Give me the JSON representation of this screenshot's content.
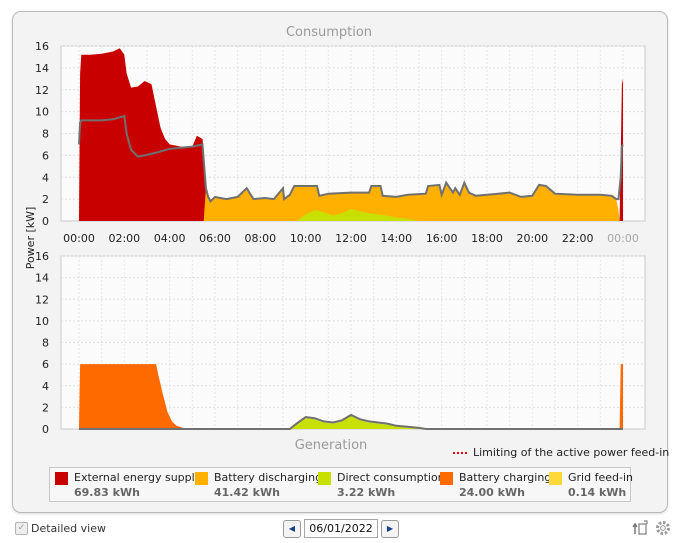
{
  "chart_data": [
    {
      "type": "area",
      "title": "Consumption",
      "ylabel": "Power [kW]",
      "ylim": [
        0,
        16
      ],
      "yticks": [
        "0",
        "2",
        "4",
        "6",
        "8",
        "10",
        "12",
        "14",
        "16"
      ],
      "xticks": [
        "00:00",
        "02:00",
        "04:00",
        "06:00",
        "08:00",
        "10:00",
        "12:00",
        "14:00",
        "16:00",
        "18:00",
        "20:00",
        "22:00",
        "00:00"
      ],
      "series": [
        {
          "name": "External energy supply",
          "color": "#c80000",
          "x": [
            0.0,
            0.05,
            0.1,
            0.5,
            1.0,
            1.5,
            1.8,
            2.0,
            2.1,
            2.3,
            2.6,
            2.9,
            3.2,
            3.5,
            3.6,
            3.8,
            4.0,
            4.5,
            5.0,
            5.2,
            5.45,
            5.5,
            5.6,
            5.7,
            5.75,
            23.85,
            23.9,
            23.95,
            24.0
          ],
          "values": [
            0,
            13.5,
            15.2,
            15.2,
            15.3,
            15.5,
            15.8,
            15.2,
            13.5,
            12.2,
            12.3,
            12.8,
            12.5,
            9.5,
            8.5,
            7.5,
            7.0,
            6.8,
            6.8,
            7.8,
            7.5,
            6.5,
            3.0,
            0.5,
            0,
            0,
            6.0,
            12.5,
            13.0
          ]
        },
        {
          "name": "Battery discharging",
          "color": "#ffb000",
          "x": [
            5.5,
            5.6,
            5.7,
            5.8,
            6.0,
            6.5,
            7.0,
            7.4,
            7.7,
            8.2,
            8.6,
            9.0,
            9.05,
            9.3,
            9.5,
            10.5,
            10.6,
            11.0,
            12.0,
            12.8,
            12.9,
            13.3,
            13.4,
            14.0,
            14.5,
            15.3,
            15.4,
            15.9,
            16.0,
            16.2,
            16.5,
            16.6,
            16.8,
            17.0,
            17.2,
            17.5,
            18.0,
            18.5,
            19.0,
            19.5,
            20.0,
            20.3,
            20.6,
            21.0,
            22.0,
            23.0,
            23.5,
            23.7,
            23.8,
            23.85
          ],
          "values": [
            0,
            3.0,
            2.2,
            1.8,
            2.2,
            2.0,
            2.2,
            3.0,
            2.0,
            2.1,
            2.0,
            3.0,
            2.0,
            2.4,
            3.2,
            3.2,
            2.3,
            2.5,
            2.6,
            2.6,
            3.2,
            3.2,
            2.3,
            2.2,
            2.4,
            2.5,
            3.2,
            3.3,
            2.4,
            3.5,
            2.6,
            3.0,
            2.4,
            3.5,
            2.6,
            2.3,
            2.4,
            2.5,
            2.6,
            2.2,
            2.3,
            3.3,
            3.2,
            2.5,
            2.4,
            2.4,
            2.3,
            2.0,
            1.0,
            0
          ]
        },
        {
          "name": "Direct consumption",
          "color": "#c8e000",
          "x": [
            9.6,
            10.0,
            10.4,
            10.8,
            11.2,
            11.6,
            12.0,
            12.4,
            12.8,
            13.2,
            13.6,
            14.0,
            14.5,
            15.0
          ],
          "values": [
            0,
            0.6,
            1.0,
            0.8,
            0.5,
            0.7,
            1.1,
            0.9,
            0.7,
            0.6,
            0.5,
            0.3,
            0.2,
            0
          ]
        }
      ],
      "consumption_line": {
        "color": "#707070",
        "x": [
          0.0,
          0.05,
          0.1,
          1.0,
          1.5,
          2.0,
          2.1,
          2.3,
          2.6,
          2.9,
          3.5,
          4.0,
          4.5,
          5.0,
          5.45,
          5.6,
          5.7,
          5.8,
          6.0,
          6.5,
          7.0,
          7.4,
          7.7,
          8.2,
          8.6,
          9.0,
          9.05,
          9.3,
          9.5,
          10.5,
          10.6,
          11.0,
          12.0,
          12.8,
          12.9,
          13.3,
          13.4,
          14.0,
          14.5,
          15.3,
          15.4,
          15.9,
          16.0,
          16.2,
          16.5,
          16.6,
          16.8,
          17.0,
          17.2,
          17.5,
          18.0,
          18.5,
          19.0,
          19.5,
          20.0,
          20.3,
          20.6,
          21.0,
          22.0,
          23.0,
          23.5,
          23.7,
          23.8,
          23.9,
          23.95,
          24.0
        ],
        "values": [
          7.0,
          9.0,
          9.2,
          9.2,
          9.3,
          9.6,
          8.0,
          6.5,
          5.9,
          6.0,
          6.3,
          6.6,
          6.7,
          6.8,
          7.0,
          3.0,
          2.2,
          1.8,
          2.2,
          2.0,
          2.2,
          3.0,
          2.0,
          2.1,
          2.0,
          3.0,
          2.0,
          2.4,
          3.2,
          3.2,
          2.3,
          2.5,
          2.6,
          2.6,
          3.2,
          3.2,
          2.3,
          2.2,
          2.4,
          2.5,
          3.2,
          3.3,
          2.4,
          3.5,
          2.6,
          3.0,
          2.4,
          3.5,
          2.6,
          2.3,
          2.4,
          2.5,
          2.6,
          2.2,
          2.3,
          3.3,
          3.2,
          2.5,
          2.4,
          2.4,
          2.3,
          2.0,
          2.0,
          4.0,
          6.8,
          7.0
        ]
      }
    },
    {
      "type": "area",
      "title": "Generation",
      "ylim": [
        0,
        16
      ],
      "yticks": [
        "0",
        "2",
        "4",
        "6",
        "8",
        "10",
        "12",
        "14",
        "16"
      ],
      "series": [
        {
          "name": "Battery charging",
          "color": "#ff6a00",
          "x": [
            0.0,
            0.05,
            1.0,
            2.0,
            3.0,
            3.4,
            3.5,
            3.7,
            3.9,
            4.1,
            4.3,
            4.6,
            5.0,
            5.5,
            5.6,
            23.85,
            23.9,
            24.0
          ],
          "values": [
            0,
            6.0,
            6.0,
            6.0,
            6.0,
            6.0,
            5.0,
            3.2,
            1.6,
            0.7,
            0.3,
            0.1,
            0.05,
            0.02,
            0,
            0,
            6.0,
            6.0
          ]
        },
        {
          "name": "Direct consumption",
          "color": "#c8e000",
          "x": [
            9.3,
            9.6,
            10.0,
            10.4,
            10.8,
            11.2,
            11.6,
            12.0,
            12.4,
            12.8,
            13.2,
            13.6,
            14.0,
            14.5,
            15.0,
            15.3
          ],
          "values": [
            0,
            0.5,
            1.0,
            0.9,
            0.6,
            0.5,
            0.7,
            1.2,
            0.8,
            0.6,
            0.5,
            0.4,
            0.3,
            0.2,
            0.1,
            0
          ]
        }
      ],
      "generation_line": {
        "color": "#707070",
        "x": [
          0.0,
          5.6,
          9.3,
          9.6,
          10.0,
          10.4,
          10.8,
          11.2,
          11.6,
          12.0,
          12.4,
          12.8,
          13.2,
          13.6,
          14.0,
          14.5,
          15.0,
          15.3,
          23.85,
          24.0
        ],
        "values": [
          0,
          0,
          0,
          0.5,
          1.1,
          1.0,
          0.7,
          0.6,
          0.8,
          1.3,
          0.9,
          0.7,
          0.6,
          0.5,
          0.3,
          0.2,
          0.1,
          0,
          0,
          0
        ]
      }
    }
  ],
  "limit_note": "Limiting of the active power feed-in",
  "legend": [
    {
      "label": "External energy supply",
      "value": "69.83 kWh",
      "color": "#c80000"
    },
    {
      "label": "Battery discharging",
      "value": "41.42 kWh",
      "color": "#ffb000"
    },
    {
      "label": "Direct consumption",
      "value": "3.22 kWh",
      "color": "#c8e000"
    },
    {
      "label": "Battery charging",
      "value": "24.00 kWh",
      "color": "#ff6a00"
    },
    {
      "label": "Grid feed-in",
      "value": "0.14 kWh",
      "color": "#ffd83a"
    }
  ],
  "footer": {
    "detailed_view_label": "Detailed view",
    "date": "06/01/2022",
    "prev_icon": "triangle-left",
    "next_icon": "triangle-right"
  }
}
